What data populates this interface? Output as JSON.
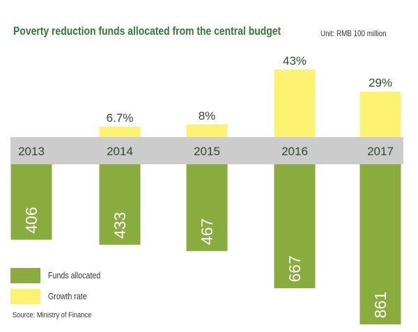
{
  "chart_data": {
    "type": "bar",
    "title": "Poverty reduction funds allocated from the central budget",
    "unit": "Unit: RMB 100 million",
    "categories": [
      "2013",
      "2014",
      "2015",
      "2016",
      "2017"
    ],
    "series": [
      {
        "name": "Funds allocated",
        "values": [
          406,
          433,
          467,
          667,
          861
        ],
        "value_labels": [
          "406",
          "433",
          "467",
          "667",
          "861"
        ],
        "color": "#8aac3e"
      },
      {
        "name": "Growth rate",
        "values": [
          null,
          6.7,
          8,
          43,
          29
        ],
        "value_labels": [
          "",
          "6.7%",
          "8%",
          "43%",
          "29%"
        ],
        "color": "#fdf271"
      }
    ],
    "axis_band_color": "#cccccc",
    "legend_position": "bottom-left",
    "source": "Source: Ministry of Finance"
  }
}
